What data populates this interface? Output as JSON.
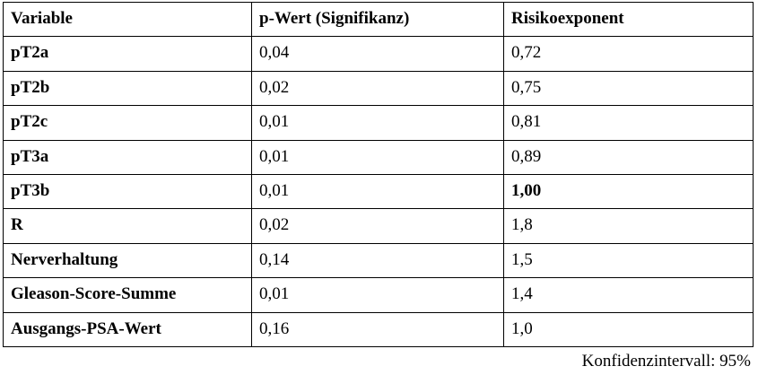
{
  "table": {
    "headers": [
      "Variable",
      "p-Wert (Signifikanz)",
      "Risikoexponent"
    ],
    "rows": [
      {
        "variable": "pT2a",
        "p_value": "0,04",
        "risk": "0,72",
        "risk_bold": false
      },
      {
        "variable": "pT2b",
        "p_value": "0,02",
        "risk": "0,75",
        "risk_bold": false
      },
      {
        "variable": "pT2c",
        "p_value": "0,01",
        "risk": "0,81",
        "risk_bold": false
      },
      {
        "variable": "pT3a",
        "p_value": "0,01",
        "risk": "0,89",
        "risk_bold": false
      },
      {
        "variable": "pT3b",
        "p_value": "0,01",
        "risk": "1,00",
        "risk_bold": true
      },
      {
        "variable": "R",
        "p_value": "0,02",
        "risk": "1,8",
        "risk_bold": false
      },
      {
        "variable": "Nerverhaltung",
        "p_value": "0,14",
        "risk": "1,5",
        "risk_bold": false
      },
      {
        "variable": "Gleason-Score-Summe",
        "p_value": "0,01",
        "risk": "1,4",
        "risk_bold": false
      },
      {
        "variable": "Ausgangs-PSA-Wert",
        "p_value": "0,16",
        "risk": "1,0",
        "risk_bold": false
      }
    ]
  },
  "footnote": "Konfidenzintervall: 95%"
}
